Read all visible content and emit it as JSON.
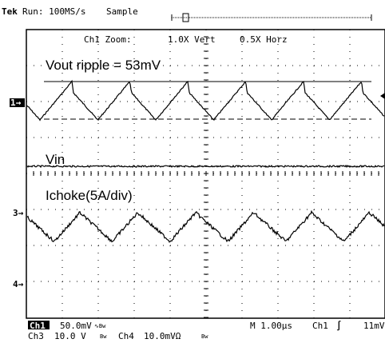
{
  "header": {
    "brand": "Tek",
    "run": "Run: 100MS/s",
    "mode": "Sample"
  },
  "zoom": {
    "label": "Ch1 Zoom:",
    "vert": "1.0X Vert",
    "horz": "0.5X Horz"
  },
  "annotations": {
    "vout": "Vout ripple = 53mV",
    "vin": "Vin",
    "ichoke": "Ichoke(5A/div)"
  },
  "markers": {
    "ch1": "1→",
    "ch3": "3→",
    "ch4": "4→"
  },
  "footer": {
    "ch1": "Ch1",
    "ch1_scale": "50.0mV",
    "ch1_flags": "∿Bw",
    "timebase": "M 1.00µs",
    "trig_ch": "Ch1",
    "trig_slope": "∫",
    "trig_level": "11mV",
    "ch3": "Ch3",
    "ch3_scale": "10.0 V",
    "ch3_flags": "Bw",
    "ch4": "Ch4",
    "ch4_scale": "10.0mVΩ",
    "ch4_flags": "Bw"
  }
}
